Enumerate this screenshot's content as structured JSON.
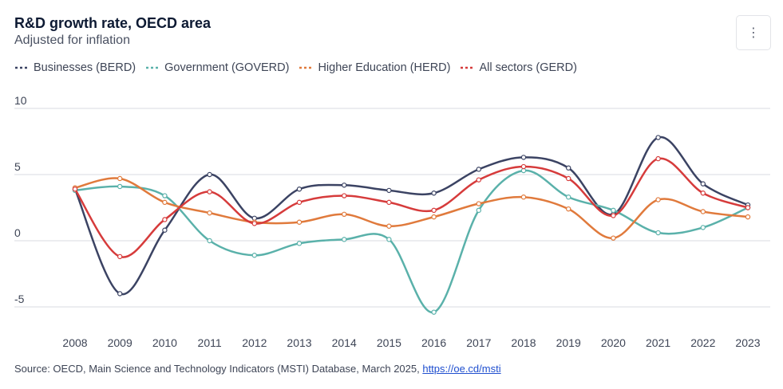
{
  "header": {
    "title": "R&D growth rate, OECD area",
    "subtitle": "Adjusted for inflation",
    "menu_icon": "⋮"
  },
  "source": {
    "text": "Source: OECD, Main Science and Technology Indicators (MSTI) Database, March 2025, ",
    "link_text": "https://oe.cd/msti"
  },
  "chart_data": {
    "type": "line",
    "title": "R&D growth rate, OECD area",
    "subtitle": "Adjusted for inflation",
    "xlabel": "",
    "ylabel": "",
    "x": [
      2008,
      2009,
      2010,
      2011,
      2012,
      2013,
      2014,
      2015,
      2016,
      2017,
      2018,
      2019,
      2020,
      2021,
      2022,
      2023
    ],
    "ylim": [
      -6,
      10
    ],
    "yticks": [
      10,
      5,
      0,
      -5
    ],
    "grid": true,
    "legend_position": "top-left",
    "series": [
      {
        "name": "Businesses (BERD)",
        "color": "#3b4363",
        "values": [
          3.9,
          -4.0,
          0.8,
          5.0,
          1.7,
          3.9,
          4.2,
          3.8,
          3.6,
          5.4,
          6.3,
          5.5,
          2.0,
          7.8,
          4.3,
          2.7
        ]
      },
      {
        "name": "Government (GOVERD)",
        "color": "#5ab1aa",
        "values": [
          3.8,
          4.1,
          3.4,
          0.0,
          -1.1,
          -0.2,
          0.1,
          0.1,
          -5.4,
          2.3,
          5.3,
          3.3,
          2.3,
          0.6,
          1.0,
          2.5
        ]
      },
      {
        "name": "Higher Education (HERD)",
        "color": "#e07a3c",
        "values": [
          4.0,
          4.7,
          2.9,
          2.1,
          1.4,
          1.4,
          2.0,
          1.1,
          1.8,
          2.8,
          3.3,
          2.4,
          0.2,
          3.1,
          2.2,
          1.8
        ]
      },
      {
        "name": "All sectors (GERD)",
        "color": "#d63b3b",
        "values": [
          3.9,
          -1.2,
          1.6,
          3.7,
          1.3,
          2.9,
          3.4,
          2.9,
          2.3,
          4.6,
          5.6,
          4.7,
          1.9,
          6.2,
          3.6,
          2.5
        ]
      }
    ]
  }
}
